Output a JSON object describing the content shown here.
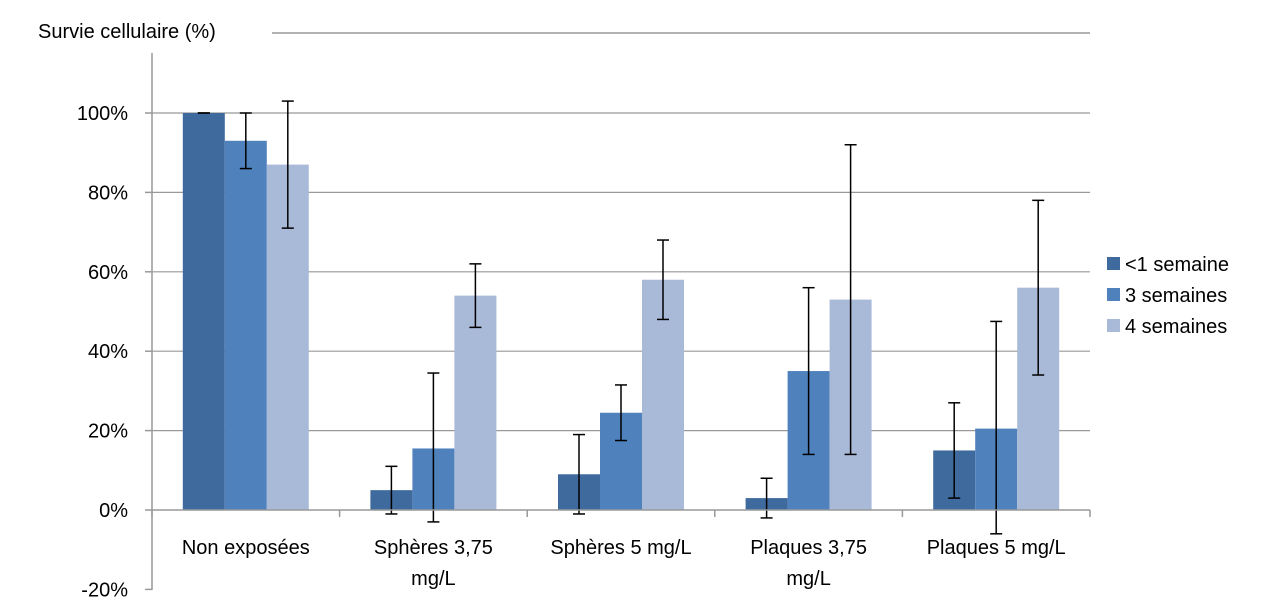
{
  "chart_data": {
    "type": "bar",
    "ylabel": "Survie cellulaire (%)",
    "ylim": [
      -20,
      100
    ],
    "yticks": [
      -20,
      0,
      20,
      40,
      60,
      80,
      100
    ],
    "ytick_labels": [
      "-20%",
      "0%",
      "20%",
      "40%",
      "60%",
      "80%",
      "100%"
    ],
    "categories": [
      [
        "Non exposées"
      ],
      [
        "Sphères 3,75",
        "mg/L"
      ],
      [
        "Sphères 5 mg/L"
      ],
      [
        "Plaques 3,75",
        "mg/L"
      ],
      [
        "Plaques 5 mg/L"
      ]
    ],
    "grid": true,
    "legend_position": "right",
    "series": [
      {
        "name": "<1 semaine",
        "color": "#3F6A9E",
        "values": [
          100,
          5,
          9,
          3,
          15
        ],
        "err_low": [
          100,
          -1,
          -1,
          -2,
          3
        ],
        "err_high": [
          100,
          11,
          19,
          8,
          27
        ]
      },
      {
        "name": "3 semaines",
        "color": "#4F81BD",
        "values": [
          93,
          15.5,
          24.5,
          35,
          20.5
        ],
        "err_low": [
          86,
          -3,
          17.5,
          14,
          -6
        ],
        "err_high": [
          100,
          34.5,
          31.5,
          56,
          47.5
        ]
      },
      {
        "name": "4 semaines",
        "color": "#A9BAD8",
        "values": [
          87,
          54,
          58,
          53,
          56
        ],
        "err_low": [
          71,
          46,
          48,
          14,
          34
        ],
        "err_high": [
          103,
          62,
          68,
          92,
          78
        ]
      }
    ]
  }
}
